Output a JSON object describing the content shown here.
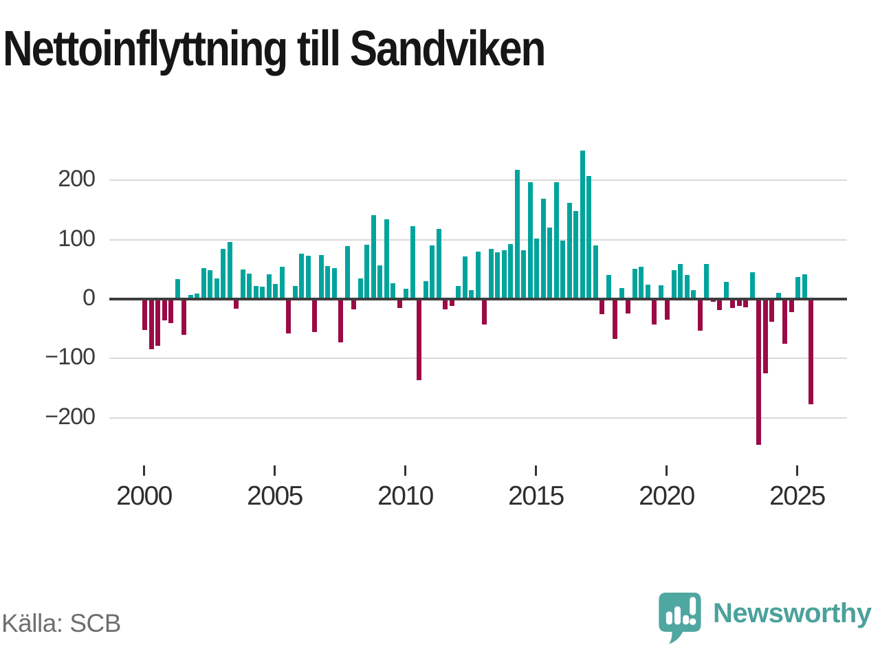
{
  "title": "Nettoinflyttning till Sandviken",
  "source_label": "Källa: SCB",
  "logo": {
    "text": "Newsworthy",
    "text_color": "#4ba19c",
    "bubble_color": "#4fa7a1"
  },
  "colors": {
    "background": "#ffffff",
    "title_text": "#161616",
    "axis_text": "#3a3a3a",
    "x_axis_text": "#2d2d2d",
    "source_text": "#6e6e6e",
    "gridline": "#d9d9d9",
    "zero_line": "#3d3d3d",
    "positive_bar": "#00a49d",
    "negative_bar": "#9b0a46"
  },
  "chart_data": {
    "type": "bar",
    "title": "Nettoinflyttning till Sandviken",
    "frequency": "quarterly",
    "start_period": "2000Q1",
    "end_period": "2025Q3",
    "xlabel": "",
    "ylabel": "",
    "ylim": [
      -270,
      270
    ],
    "grid": true,
    "legend": false,
    "positive_color": "#00a49d",
    "negative_color": "#9b0a46",
    "y_ticks": [
      200,
      100,
      0,
      -100,
      -200
    ],
    "y_tick_labels": [
      "200",
      "100",
      "0",
      "−100",
      "−200"
    ],
    "x_tick_years": [
      2000,
      2005,
      2010,
      2015,
      2020,
      2025
    ],
    "x_tick_labels": [
      "2000",
      "2005",
      "2010",
      "2015",
      "2020",
      "2025"
    ],
    "values": [
      -52,
      -84,
      -79,
      -36,
      -40,
      34,
      -60,
      7,
      9,
      52,
      49,
      35,
      85,
      96,
      -16,
      50,
      43,
      22,
      21,
      42,
      26,
      54,
      -58,
      22,
      77,
      73,
      -56,
      74,
      56,
      52,
      -73,
      89,
      -17,
      35,
      92,
      141,
      57,
      134,
      27,
      -15,
      17,
      123,
      -137,
      30,
      90,
      118,
      -17,
      -12,
      22,
      72,
      15,
      80,
      -43,
      85,
      79,
      82,
      93,
      218,
      82,
      197,
      102,
      169,
      120,
      197,
      99,
      162,
      148,
      250,
      207,
      90,
      -25,
      40,
      -67,
      18,
      -24,
      51,
      55,
      24,
      -43,
      23,
      -35,
      49,
      59,
      40,
      15,
      -53,
      59,
      -5,
      -18,
      29,
      -15,
      -12,
      -14,
      45,
      -246,
      -125,
      -38,
      10,
      -75,
      -22,
      37,
      42,
      -177
    ]
  }
}
